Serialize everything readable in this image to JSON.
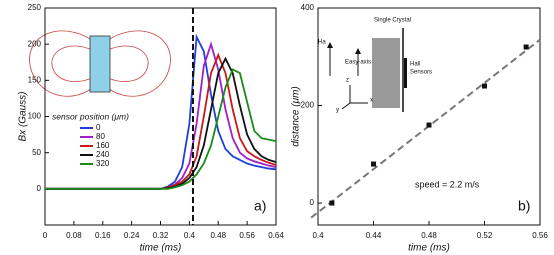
{
  "chart_data": [
    {
      "type": "line",
      "panel_label": "a)",
      "xlabel": "time (ms)",
      "ylabel": "Bx (Gauss)",
      "x": [
        0,
        0.04,
        0.08,
        0.12,
        0.16,
        0.2,
        0.24,
        0.28,
        0.32,
        0.34,
        0.36,
        0.38,
        0.4,
        0.42,
        0.44,
        0.46,
        0.48,
        0.5,
        0.52,
        0.54,
        0.56,
        0.58,
        0.6,
        0.62,
        0.64
      ],
      "xlim": [
        0,
        0.64
      ],
      "xticks": [
        0,
        0.08,
        0.16,
        0.24,
        0.32,
        0.4,
        0.48,
        0.56,
        0.64
      ],
      "ylim": [
        -50,
        250
      ],
      "yticks": [
        0,
        50,
        100,
        150,
        200,
        250
      ],
      "vline": 0.41,
      "legend_title": "sensor position (μm)",
      "series": [
        {
          "name": "0",
          "color": "#1f3fd8",
          "values": [
            0,
            0,
            0,
            0,
            0,
            0,
            0,
            0,
            0,
            3,
            10,
            30,
            90,
            210,
            190,
            130,
            80,
            55,
            45,
            40,
            35,
            32,
            30,
            28,
            27
          ]
        },
        {
          "name": "80",
          "color": "#a020c8",
          "values": [
            0,
            0,
            0,
            0,
            0,
            0,
            0,
            0,
            0,
            2,
            6,
            15,
            35,
            90,
            170,
            200,
            165,
            110,
            70,
            50,
            42,
            38,
            35,
            32,
            30
          ]
        },
        {
          "name": "160",
          "color": "#c81818",
          "values": [
            0,
            0,
            0,
            0,
            0,
            0,
            0,
            0,
            0,
            2,
            5,
            10,
            20,
            45,
            100,
            160,
            185,
            160,
            110,
            70,
            52,
            45,
            40,
            36,
            33
          ]
        },
        {
          "name": "240",
          "color": "#111111",
          "values": [
            0,
            0,
            0,
            0,
            0,
            0,
            0,
            0,
            0,
            1,
            3,
            7,
            15,
            30,
            60,
            110,
            160,
            180,
            160,
            115,
            75,
            55,
            45,
            40,
            37
          ]
        },
        {
          "name": "320",
          "color": "#1a8a1a",
          "values": [
            0,
            0,
            0,
            0,
            0,
            0,
            0,
            0,
            0,
            0,
            2,
            5,
            10,
            20,
            35,
            60,
            100,
            140,
            165,
            160,
            120,
            80,
            70,
            68,
            66
          ]
        }
      ]
    },
    {
      "type": "scatter",
      "panel_label": "b)",
      "xlabel": "time (ms)",
      "ylabel": "distance (μm)",
      "x": [
        0.41,
        0.44,
        0.48,
        0.52,
        0.55
      ],
      "values": [
        0,
        80,
        160,
        240,
        320
      ],
      "color": "#111111",
      "xlim": [
        0.4,
        0.56
      ],
      "xticks": [
        0.4,
        0.44,
        0.48,
        0.52,
        0.56
      ],
      "ylim": [
        -45,
        400
      ],
      "yticks": [
        0,
        200,
        400
      ],
      "fit_x": [
        0.395,
        0.56
      ],
      "fit_y": [
        -30,
        335
      ],
      "annotation": "speed = 2.2 m/s",
      "inset_labels": [
        "Single Crystal",
        "Easy-axis",
        "Hall",
        "Sensors",
        "Ha",
        "z",
        "y",
        "x"
      ]
    }
  ]
}
